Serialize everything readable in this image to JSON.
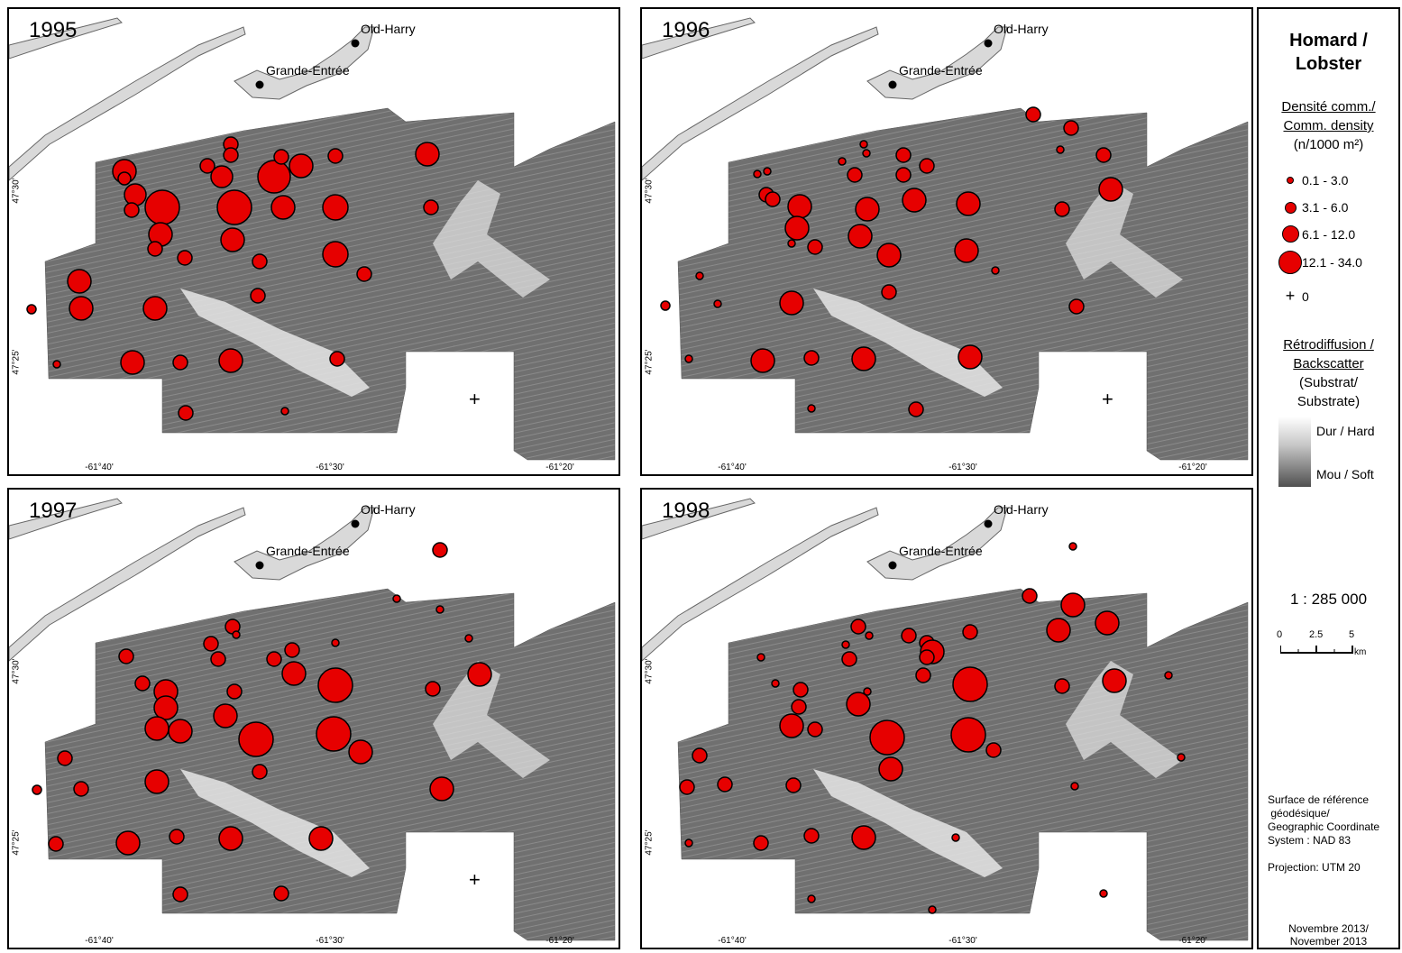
{
  "panels": [
    {
      "year": "1995"
    },
    {
      "year": "1996"
    },
    {
      "year": "1997"
    },
    {
      "year": "1998"
    }
  ],
  "places": {
    "old_harry": "Old-Harry",
    "grande_entree": "Grande-Entrée"
  },
  "ticks": {
    "x": [
      "-61°40'",
      "-61°30'",
      "-61°20'"
    ],
    "y": [
      "47°30'",
      "47°25'"
    ]
  },
  "legend": {
    "title_line1": "Homard /",
    "title_line2": "Lobster",
    "density_line1": "Densité comm./",
    "density_line2": "Comm. density",
    "density_unit": "(n/1000 m²)",
    "classes": [
      "0.1 - 3.0",
      "3.1 - 6.0",
      "6.1 - 12.0",
      "12.1 - 34.0"
    ],
    "zero_symbol": "+",
    "zero_label": "0",
    "backscatter_line1": "Rétrodiffusion /",
    "backscatter_line2": "Backscatter",
    "backscatter_line3": "(Substrat/",
    "backscatter_line4": "Substrate)",
    "hard_label": "Dur / Hard",
    "soft_label": "Mou / Soft",
    "scale_ratio": "1 : 285 000",
    "scale_ticks": [
      "0",
      "2.5",
      "5"
    ],
    "scale_unit": "km",
    "crs_line1": "Surface de référence",
    "crs_line2": " géodésique/",
    "crs_line3": "Geographic Coordinate",
    "crs_line4": "System : NAD 83",
    "projection": "Projection: UTM 20",
    "date_line1": "Novembre 2013/",
    "date_line2": "November 2013"
  },
  "colors": {
    "point_fill": "#e60000",
    "land": "#d9d9d9",
    "mosaic": "#707070"
  }
}
